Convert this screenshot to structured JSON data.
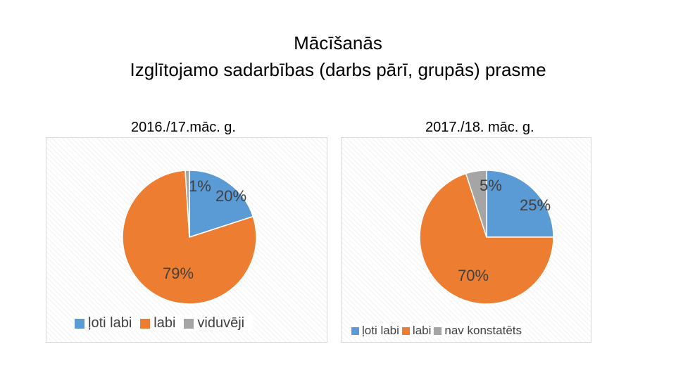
{
  "title": "Mācīšanās",
  "subtitle": "Izglītojamo sadarbības (darbs pārī, grupās) prasme",
  "colors": {
    "blue": "#5b9bd5",
    "orange": "#ed7d31",
    "gray": "#a5a5a5"
  },
  "chart_data": [
    {
      "type": "pie",
      "title": "2016./17.māc. g.",
      "categories": [
        "ļoti labi",
        "labi",
        "viduvēji"
      ],
      "values": [
        20,
        79,
        1
      ],
      "data_labels": [
        "20%",
        "79%",
        "1%"
      ],
      "legend_position": "bottom"
    },
    {
      "type": "pie",
      "title": "2017./18. māc. g.",
      "categories": [
        "ļoti labi",
        "labi",
        "nav konstatēts"
      ],
      "values": [
        25,
        70,
        5
      ],
      "data_labels": [
        "25%",
        "70%",
        "5%"
      ],
      "legend_position": "bottom"
    }
  ]
}
